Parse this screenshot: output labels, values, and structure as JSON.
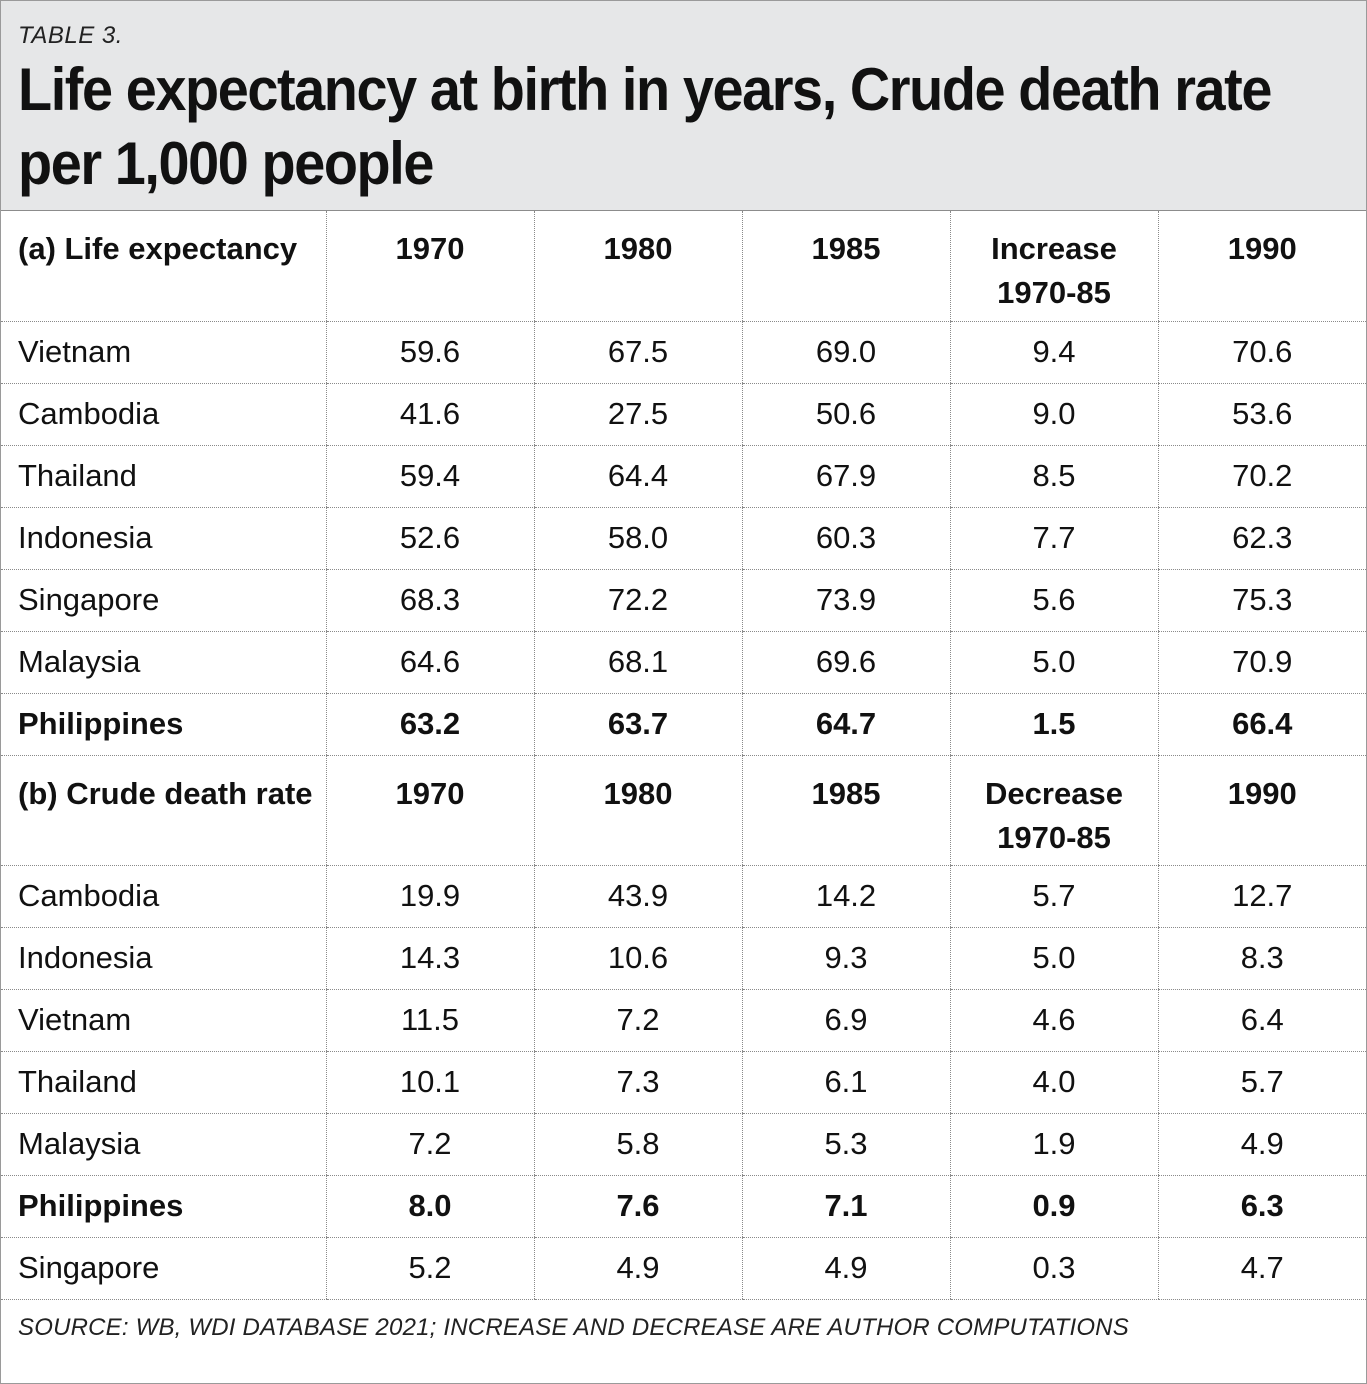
{
  "table_label": "TABLE 3.",
  "title": "Life expectancy at birth in years, Crude death rate per 1,000 people",
  "section_a": {
    "header": [
      "(a) Life expectancy",
      "1970",
      "1980",
      "1985",
      "Increase 1970-85",
      "1990"
    ],
    "rows": [
      {
        "country": "Vietnam",
        "values": [
          "59.6",
          "67.5",
          "69.0",
          "9.4",
          "70.6"
        ],
        "bold": false
      },
      {
        "country": "Cambodia",
        "values": [
          "41.6",
          "27.5",
          "50.6",
          "9.0",
          "53.6"
        ],
        "bold": false
      },
      {
        "country": "Thailand",
        "values": [
          "59.4",
          "64.4",
          "67.9",
          "8.5",
          "70.2"
        ],
        "bold": false
      },
      {
        "country": "Indonesia",
        "values": [
          "52.6",
          "58.0",
          "60.3",
          "7.7",
          "62.3"
        ],
        "bold": false
      },
      {
        "country": "Singapore",
        "values": [
          "68.3",
          "72.2",
          "73.9",
          "5.6",
          "75.3"
        ],
        "bold": false
      },
      {
        "country": "Malaysia",
        "values": [
          "64.6",
          "68.1",
          "69.6",
          "5.0",
          "70.9"
        ],
        "bold": false
      },
      {
        "country": "Philippines",
        "values": [
          "63.2",
          "63.7",
          "64.7",
          "1.5",
          "66.4"
        ],
        "bold": true
      }
    ]
  },
  "section_b": {
    "header": [
      "(b) Crude death rate",
      "1970",
      "1980",
      "1985",
      "Decrease 1970-85",
      "1990"
    ],
    "rows": [
      {
        "country": "Cambodia",
        "values": [
          "19.9",
          "43.9",
          "14.2",
          "5.7",
          "12.7"
        ],
        "bold": false
      },
      {
        "country": "Indonesia",
        "values": [
          "14.3",
          "10.6",
          "9.3",
          "5.0",
          "8.3"
        ],
        "bold": false
      },
      {
        "country": "Vietnam",
        "values": [
          "11.5",
          "7.2",
          "6.9",
          "4.6",
          "6.4"
        ],
        "bold": false
      },
      {
        "country": "Thailand",
        "values": [
          "10.1",
          "7.3",
          "6.1",
          "4.0",
          "5.7"
        ],
        "bold": false
      },
      {
        "country": "Malaysia",
        "values": [
          "7.2",
          "5.8",
          "5.3",
          "1.9",
          "4.9"
        ],
        "bold": false
      },
      {
        "country": "Philippines",
        "values": [
          "8.0",
          "7.6",
          "7.1",
          "0.9",
          "6.3"
        ],
        "bold": true
      },
      {
        "country": "Singapore",
        "values": [
          "5.2",
          "4.9",
          "4.9",
          "0.3",
          "4.7"
        ],
        "bold": false
      }
    ]
  },
  "source": "SOURCE: WB, WDI DATABASE 2021; INCREASE AND DECREASE ARE AUTHOR COMPUTATIONS"
}
